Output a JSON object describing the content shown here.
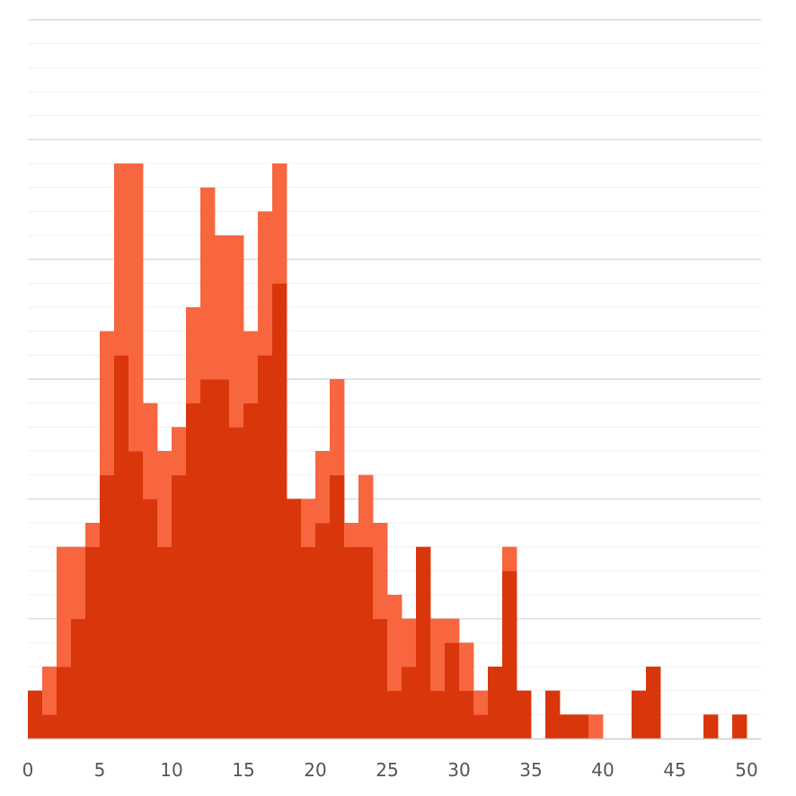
{
  "chart_data": {
    "type": "bar",
    "title": "",
    "xlabel": "",
    "ylabel": "",
    "xlim": [
      0,
      51
    ],
    "ylim": [
      0,
      30
    ],
    "bin_width": 1,
    "grid": true,
    "y_tick_labels_shown": false,
    "x_ticks": [
      0,
      5,
      10,
      15,
      20,
      25,
      30,
      35,
      40,
      45,
      50
    ],
    "x_tick_labels": [
      "0",
      "5",
      "10",
      "15",
      "20",
      "25",
      "30",
      "35",
      "40",
      "45",
      "50"
    ],
    "colors": {
      "dark": "#d9360b",
      "light": "#f7663f",
      "grid": "#e6e6e6",
      "axis": "#cccccc"
    },
    "series": [
      {
        "color": "#d9360b",
        "bin_starts": [
          0,
          1,
          2,
          3,
          4,
          5,
          6,
          7,
          8,
          9,
          10,
          11,
          12,
          13,
          14,
          15,
          16,
          17,
          18,
          19,
          20,
          21,
          22,
          23,
          24,
          25,
          26,
          27,
          28,
          29,
          30,
          31,
          32,
          33,
          34,
          35,
          36,
          37,
          38,
          39,
          40,
          41,
          42,
          43,
          44,
          45,
          46,
          47,
          48,
          49,
          50
        ],
        "values": [
          2,
          1,
          3,
          5,
          8,
          11,
          16,
          12,
          10,
          8,
          11,
          14,
          15,
          15,
          13,
          14,
          16,
          19,
          10,
          8,
          9,
          11,
          8,
          8,
          5,
          2,
          3,
          8,
          2,
          4,
          2,
          1,
          3,
          7,
          2,
          0,
          2,
          1,
          1,
          0,
          0,
          0,
          2,
          3,
          0,
          0,
          0,
          1,
          0,
          1,
          0
        ]
      },
      {
        "color": "#f7663f",
        "bin_starts": [
          0,
          1,
          2,
          3,
          4,
          5,
          6,
          7,
          8,
          9,
          10,
          11,
          12,
          13,
          14,
          15,
          16,
          17,
          18,
          19,
          20,
          21,
          22,
          23,
          24,
          25,
          26,
          27,
          28,
          29,
          30,
          31,
          32,
          33,
          34,
          35,
          36,
          37,
          38,
          39,
          40,
          41,
          42,
          43,
          44,
          45,
          46,
          47,
          48,
          49,
          50
        ],
        "values": [
          0,
          2,
          5,
          3,
          1,
          6,
          8,
          12,
          4,
          4,
          2,
          4,
          8,
          6,
          8,
          3,
          6,
          5,
          0,
          2,
          3,
          4,
          1,
          3,
          4,
          4,
          2,
          0,
          3,
          1,
          2,
          1,
          0,
          1,
          0,
          0,
          0,
          0,
          0,
          1,
          0,
          0,
          0,
          0,
          0,
          0,
          0,
          0,
          0,
          0,
          0
        ]
      }
    ]
  }
}
